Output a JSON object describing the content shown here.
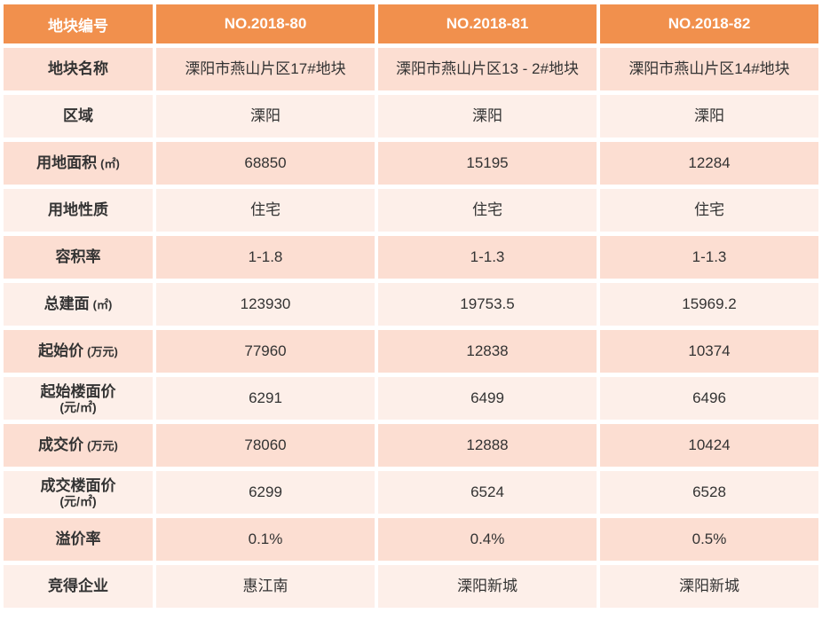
{
  "colors": {
    "header_bg": "#f1904d",
    "header_text": "#ffffff",
    "row_shade_a": "#fcded2",
    "row_shade_b": "#fdefe9",
    "body_text": "#333333",
    "page_bg": "#ffffff"
  },
  "table": {
    "header": {
      "label": "地块编号",
      "columns": [
        "NO.2018-80",
        "NO.2018-81",
        "NO.2018-82"
      ]
    },
    "rows": [
      {
        "label": "地块名称",
        "unit": "",
        "unit_below": false,
        "shade": "a",
        "values": [
          "溧阳市燕山片区17#地块",
          "溧阳市燕山片区13 - 2#地块",
          "溧阳市燕山片区14#地块"
        ]
      },
      {
        "label": "区域",
        "unit": "",
        "unit_below": false,
        "shade": "b",
        "values": [
          "溧阳",
          "溧阳",
          "溧阳"
        ]
      },
      {
        "label": "用地面积",
        "unit": "(㎡)",
        "unit_below": false,
        "shade": "a",
        "values": [
          "68850",
          "15195",
          "12284"
        ]
      },
      {
        "label": "用地性质",
        "unit": "",
        "unit_below": false,
        "shade": "b",
        "values": [
          "住宅",
          "住宅",
          "住宅"
        ]
      },
      {
        "label": "容积率",
        "unit": "",
        "unit_below": false,
        "shade": "a",
        "values": [
          "1-1.8",
          "1-1.3",
          "1-1.3"
        ]
      },
      {
        "label": "总建面",
        "unit": "(㎡)",
        "unit_below": false,
        "shade": "b",
        "values": [
          "123930",
          "19753.5",
          "15969.2"
        ]
      },
      {
        "label": "起始价",
        "unit": "(万元)",
        "unit_below": false,
        "shade": "a",
        "values": [
          "77960",
          "12838",
          "10374"
        ]
      },
      {
        "label": "起始楼面价",
        "unit": "(元/㎡)",
        "unit_below": true,
        "shade": "b",
        "values": [
          "6291",
          "6499",
          "6496"
        ]
      },
      {
        "label": "成交价",
        "unit": "(万元)",
        "unit_below": false,
        "shade": "a",
        "values": [
          "78060",
          "12888",
          "10424"
        ]
      },
      {
        "label": "成交楼面价",
        "unit": "(元/㎡)",
        "unit_below": true,
        "shade": "b",
        "values": [
          "6299",
          "6524",
          "6528"
        ]
      },
      {
        "label": "溢价率",
        "unit": "",
        "unit_below": false,
        "shade": "a",
        "values": [
          "0.1%",
          "0.4%",
          "0.5%"
        ]
      },
      {
        "label": "竞得企业",
        "unit": "",
        "unit_below": false,
        "shade": "b",
        "values": [
          "惠江南",
          "溧阳新城",
          "溧阳新城"
        ]
      }
    ]
  },
  "chart_data": {
    "type": "table",
    "title": "",
    "columns": [
      "地块编号",
      "NO.2018-80",
      "NO.2018-81",
      "NO.2018-82"
    ],
    "rows": [
      [
        "地块名称",
        "溧阳市燕山片区17#地块",
        "溧阳市燕山片区13 - 2#地块",
        "溧阳市燕山片区14#地块"
      ],
      [
        "区域",
        "溧阳",
        "溧阳",
        "溧阳"
      ],
      [
        "用地面积 (㎡)",
        "68850",
        "15195",
        "12284"
      ],
      [
        "用地性质",
        "住宅",
        "住宅",
        "住宅"
      ],
      [
        "容积率",
        "1-1.8",
        "1-1.3",
        "1-1.3"
      ],
      [
        "总建面 (㎡)",
        "123930",
        "19753.5",
        "15969.2"
      ],
      [
        "起始价 (万元)",
        "77960",
        "12838",
        "10374"
      ],
      [
        "起始楼面价 (元/㎡)",
        "6291",
        "6499",
        "6496"
      ],
      [
        "成交价 (万元)",
        "78060",
        "12888",
        "10424"
      ],
      [
        "成交楼面价 (元/㎡)",
        "6299",
        "6524",
        "6528"
      ],
      [
        "溢价率",
        "0.1%",
        "0.4%",
        "0.5%"
      ],
      [
        "竞得企业",
        "惠江南",
        "溧阳新城",
        "溧阳新城"
      ]
    ]
  }
}
